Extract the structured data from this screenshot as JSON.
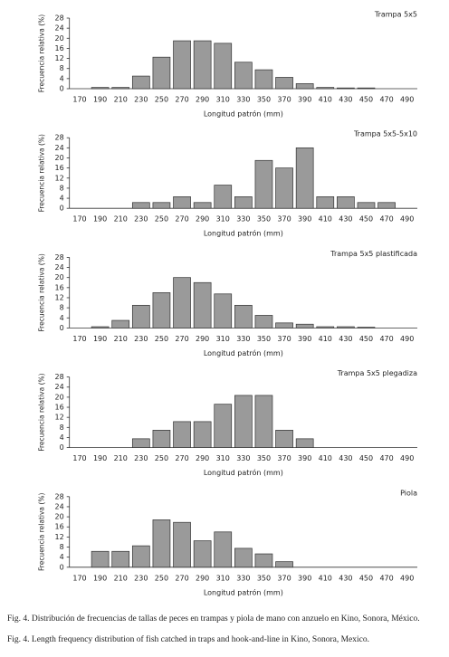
{
  "chart_data": [
    {
      "type": "bar",
      "title": "Trampa 5x5",
      "xlabel": "Longitud patrón (mm)",
      "ylabel": "Frecuencia relativa (%)",
      "categories": [
        "170",
        "190",
        "210",
        "230",
        "250",
        "270",
        "290",
        "310",
        "330",
        "350",
        "370",
        "390",
        "410",
        "430",
        "450",
        "470",
        "490"
      ],
      "values": [
        0,
        0.5,
        0.5,
        5,
        12.5,
        19,
        19,
        18,
        10.5,
        7.5,
        4.5,
        2,
        0.5,
        0.3,
        0.3,
        0,
        0
      ],
      "color": "#9a9a9a",
      "ylim": [
        0,
        28
      ],
      "yticks": [
        0,
        4,
        8,
        12,
        16,
        20,
        24,
        28
      ],
      "grid": false
    },
    {
      "type": "bar",
      "title": "Trampa 5x5-5x10",
      "xlabel": "Longitud patrón (mm)",
      "ylabel": "Frecuencia relativa (%)",
      "categories": [
        "170",
        "190",
        "210",
        "230",
        "250",
        "270",
        "290",
        "310",
        "330",
        "350",
        "370",
        "390",
        "410",
        "430",
        "450",
        "470",
        "490"
      ],
      "values": [
        0,
        0,
        0,
        2.3,
        2.3,
        4.6,
        2.3,
        9.2,
        4.6,
        19,
        16,
        24,
        4.6,
        4.6,
        2.3,
        2.3,
        0
      ],
      "color": "#9a9a9a",
      "ylim": [
        0,
        28
      ],
      "yticks": [
        0,
        4,
        8,
        12,
        16,
        20,
        24,
        28
      ],
      "grid": false
    },
    {
      "type": "bar",
      "title": "Trampa 5x5 plastificada",
      "xlabel": "Longitud patrón (mm)",
      "ylabel": "Frecuencia relativa (%)",
      "categories": [
        "170",
        "190",
        "210",
        "230",
        "250",
        "270",
        "290",
        "310",
        "330",
        "350",
        "370",
        "390",
        "410",
        "430",
        "450",
        "470",
        "490"
      ],
      "values": [
        0,
        0.5,
        3,
        9,
        14,
        20,
        18,
        13.5,
        9,
        5,
        2,
        1.5,
        0.5,
        0.5,
        0.3,
        0,
        0
      ],
      "color": "#9a9a9a",
      "ylim": [
        0,
        28
      ],
      "yticks": [
        0,
        4,
        8,
        12,
        16,
        20,
        24,
        28
      ],
      "grid": false
    },
    {
      "type": "bar",
      "title": "Trampa 5x5 plegadiza",
      "xlabel": "Longitud patrón (mm)",
      "ylabel": "Frecuencia relativa (%)",
      "categories": [
        "170",
        "190",
        "210",
        "230",
        "250",
        "270",
        "290",
        "310",
        "330",
        "350",
        "370",
        "390",
        "410",
        "430",
        "450",
        "470",
        "490"
      ],
      "values": [
        0,
        0,
        0,
        3.5,
        6.9,
        10.3,
        10.3,
        17.2,
        20.7,
        20.7,
        6.9,
        3.5,
        0,
        0,
        0,
        0,
        0
      ],
      "color": "#9a9a9a",
      "ylim": [
        0,
        28
      ],
      "yticks": [
        0,
        4,
        8,
        12,
        16,
        20,
        24,
        28
      ],
      "grid": false
    },
    {
      "type": "bar",
      "title": "Piola",
      "xlabel": "Longitud patrón (mm)",
      "ylabel": "Frecuencia relativa (%)",
      "categories": [
        "170",
        "190",
        "210",
        "230",
        "250",
        "270",
        "290",
        "310",
        "330",
        "350",
        "370",
        "390",
        "410",
        "430",
        "450",
        "470",
        "490"
      ],
      "values": [
        0,
        6.3,
        6.3,
        8.5,
        18.8,
        17.8,
        10.5,
        14,
        7.5,
        5.3,
        2.2,
        0,
        0,
        0,
        0,
        0,
        0
      ],
      "color": "#9a9a9a",
      "ylim": [
        0,
        28
      ],
      "yticks": [
        0,
        4,
        8,
        12,
        16,
        20,
        24,
        28
      ],
      "grid": false
    }
  ],
  "captions": [
    "Fig. 4. Distribución de frecuencias de tallas de peces en trampas y piola de mano con anzuelo en Kino, Sonora, México.",
    "Fig. 4. Length frequency distribution of fish catched in traps and hook-and-line in Kino, Sonora, Mexico."
  ]
}
